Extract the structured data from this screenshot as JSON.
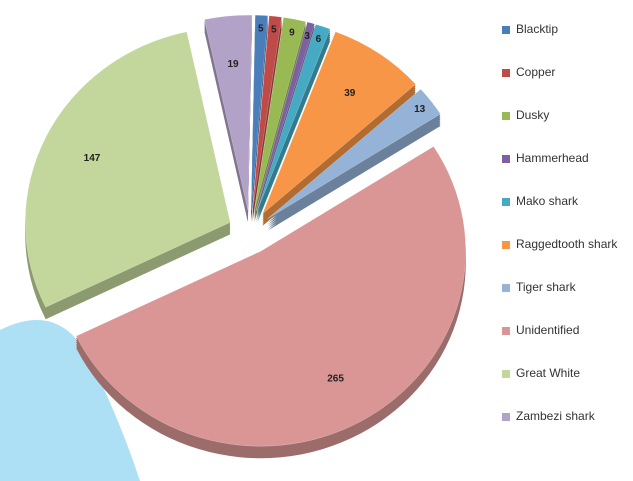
{
  "chart_data": {
    "type": "pie",
    "categories": [
      "Blacktip",
      "Copper",
      "Dusky",
      "Hammerhead",
      "Mako shark",
      "Raggedtooth shark",
      "Tiger shark",
      "Unidentified",
      "Great White",
      "Zambezi shark"
    ],
    "values": [
      5,
      5,
      9,
      3,
      6,
      39,
      13,
      265,
      147,
      19
    ],
    "colors": [
      "#4a7ebb",
      "#be4b48",
      "#98b954",
      "#7d60a0",
      "#46aac5",
      "#f79646",
      "#95b3d7",
      "#d99694",
      "#c3d69b",
      "#b3a2c7"
    ],
    "legend": "right"
  }
}
